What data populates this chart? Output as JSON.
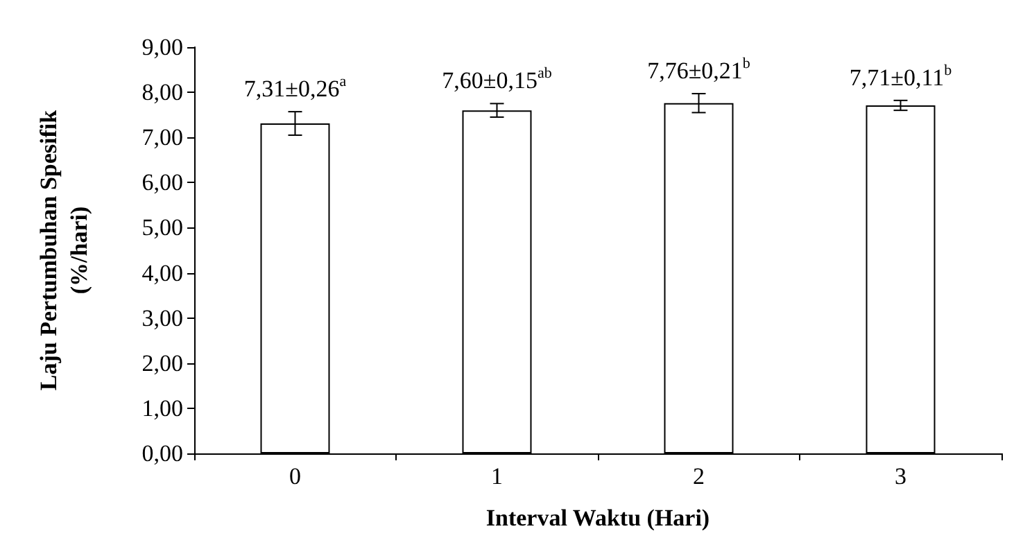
{
  "chart_data": {
    "type": "bar",
    "xlabel": "Interval Waktu (Hari)",
    "ylabel": "Laju Pertumbuhan Spesifik\n(%/hari)",
    "categories": [
      "0",
      "1",
      "2",
      "3"
    ],
    "values": [
      7.31,
      7.6,
      7.76,
      7.71
    ],
    "errors": [
      0.26,
      0.15,
      0.21,
      0.11
    ],
    "value_labels": [
      "7,31±0,26$^{a}$",
      "7,60±0,15$^{ab}$",
      "7,76±0,21$^{b}$",
      "7,71±0,11$^{b}$"
    ],
    "color": "#ffffff",
    "ylim": [
      0,
      9
    ],
    "yticks": [
      {
        "value": 0,
        "label": "0,00"
      },
      {
        "value": 1,
        "label": "1,00"
      },
      {
        "value": 2,
        "label": "2,00"
      },
      {
        "value": 3,
        "label": "3,00"
      },
      {
        "value": 4,
        "label": "4,00"
      },
      {
        "value": 5,
        "label": "5,00"
      },
      {
        "value": 6,
        "label": "6,00"
      },
      {
        "value": 7,
        "label": "7,00"
      },
      {
        "value": 8,
        "label": "8,00"
      },
      {
        "value": 9,
        "label": "9,00"
      }
    ],
    "grid": false
  }
}
